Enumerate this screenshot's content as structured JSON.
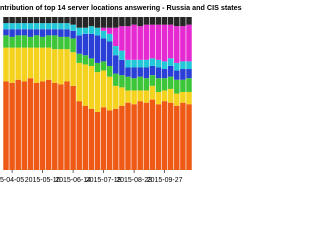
{
  "chart_data": {
    "type": "stacked_bar",
    "title": "ntribution of top 14 server locations answering -  Russia and CIS states",
    "categories": [
      null,
      "5-04-05",
      null,
      null,
      null,
      null,
      "2015-05-10",
      null,
      null,
      null,
      null,
      "2015-06-14",
      null,
      null,
      null,
      null,
      "2015-07-19",
      null,
      null,
      null,
      null,
      "2015-08-23",
      null,
      null,
      null,
      null,
      "2015-09-27",
      null,
      null,
      null,
      null
    ],
    "ylim": [
      0,
      100
    ],
    "series": [
      {
        "color": "#ee5a16",
        "values": [
          58,
          57,
          59,
          58,
          60,
          57,
          58,
          59,
          57,
          56,
          58,
          55,
          45,
          42,
          40,
          38,
          41,
          39,
          40,
          42,
          44,
          43,
          45,
          44,
          46,
          43,
          45,
          44,
          42,
          44,
          43
        ]
      },
      {
        "color": "#f4d21e",
        "values": [
          22,
          23,
          21,
          22,
          20,
          23,
          22,
          21,
          22,
          23,
          21,
          22,
          25,
          27,
          28,
          26,
          24,
          22,
          15,
          12,
          8,
          9,
          7,
          8,
          9,
          8,
          7,
          9,
          8,
          7,
          8
        ]
      },
      {
        "color": "#3ec63a",
        "values": [
          8,
          7,
          8,
          8,
          7,
          8,
          7,
          8,
          9,
          8,
          8,
          9,
          6,
          6,
          5,
          6,
          6,
          7,
          8,
          8,
          9,
          8,
          9,
          8,
          7,
          9,
          8,
          8,
          9,
          8,
          9
        ]
      },
      {
        "color": "#2a3fd6",
        "values": [
          4,
          5,
          4,
          4,
          5,
          4,
          5,
          4,
          4,
          5,
          5,
          5,
          12,
          14,
          16,
          18,
          15,
          16,
          12,
          10,
          6,
          7,
          6,
          7,
          6,
          7,
          6,
          7,
          6,
          7,
          6
        ]
      },
      {
        "color": "#22c8d8",
        "values": [
          4,
          4,
          4,
          4,
          4,
          4,
          4,
          4,
          4,
          4,
          4,
          4,
          5,
          4,
          5,
          5,
          5,
          5,
          6,
          6,
          5,
          5,
          5,
          5,
          5,
          5,
          5,
          5,
          5,
          5,
          5
        ]
      },
      {
        "color": "#e62ad2",
        "values": [
          0,
          0,
          0,
          0,
          0,
          0,
          0,
          0,
          0,
          0,
          0,
          0,
          0,
          0,
          0,
          0,
          2,
          4,
          12,
          16,
          22,
          23,
          22,
          23,
          22,
          23,
          24,
          22,
          24,
          23,
          24
        ]
      },
      {
        "color": "#262626",
        "values": [
          4,
          4,
          4,
          4,
          4,
          4,
          4,
          4,
          4,
          4,
          4,
          5,
          7,
          7,
          6,
          7,
          7,
          7,
          7,
          6,
          6,
          5,
          6,
          5,
          5,
          5,
          5,
          5,
          6,
          6,
          5
        ]
      }
    ]
  }
}
